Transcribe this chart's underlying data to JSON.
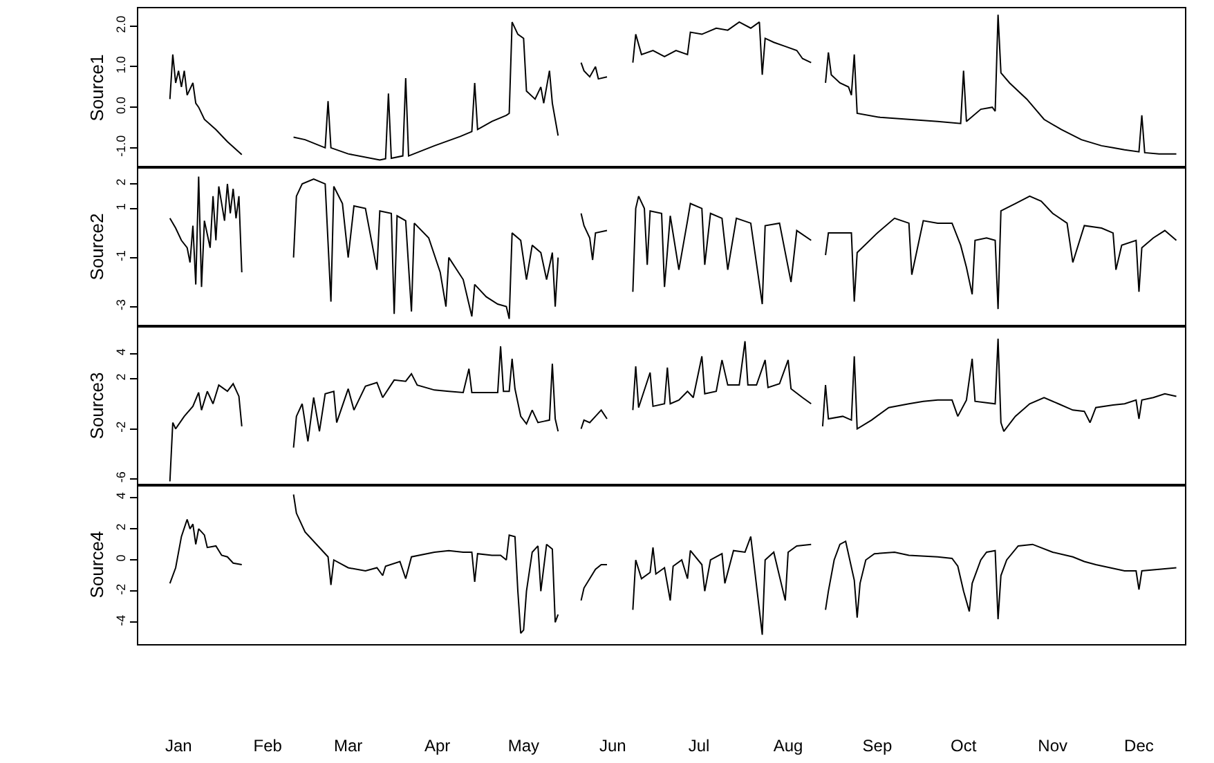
{
  "chart_data": [
    {
      "type": "line",
      "ylabel": "Source1",
      "color": "#000000",
      "tick_labels": "y",
      "xlim": [
        "--01-01",
        "--12-31"
      ],
      "xticks": [
        {
          "value": "--01-15",
          "label": "Jan"
        },
        {
          "value": "--02-15",
          "label": "Feb"
        },
        {
          "value": "--03-15",
          "label": "Mar"
        },
        {
          "value": "--04-15",
          "label": "Apr"
        },
        {
          "value": "--05-15",
          "label": "May"
        },
        {
          "value": "--06-15",
          "label": "Jun"
        },
        {
          "value": "--07-15",
          "label": "Jul"
        },
        {
          "value": "--08-15",
          "label": "Aug"
        },
        {
          "value": "--09-15",
          "label": "Sep"
        },
        {
          "value": "--10-15",
          "label": "Oct"
        },
        {
          "value": "--11-15",
          "label": "Nov"
        },
        {
          "value": "--12-15",
          "label": "Dec"
        }
      ],
      "ylim": [
        -1.48,
        2.44
      ],
      "yticks": [
        {
          "value": -1,
          "label": "-1.0"
        },
        {
          "value": 0,
          "label": "0.0"
        },
        {
          "value": 1,
          "label": "1.0"
        },
        {
          "value": 2,
          "label": "2.0"
        }
      ],
      "x": [
        "--01-12",
        "--01-13",
        "--01-14",
        "--01-15",
        "--01-16",
        "--01-17",
        "--01-18",
        "--01-20",
        "--01-21",
        "--01-22",
        "--01-24",
        "--01-28",
        "--02-01",
        "--02-06",
        "--02-15",
        "--02-24",
        "--02-28",
        "--03-07",
        "--03-08",
        "--03-09",
        "--03-15",
        "--03-26",
        "--03-28",
        "--03-29",
        "--03-30",
        "--04-03",
        "--04-04",
        "--04-05",
        "--04-14",
        "--04-23",
        "--04-27",
        "--04-28",
        "--04-29",
        "--05-04",
        "--05-09",
        "--05-10",
        "--05-11",
        "--05-13",
        "--05-15",
        "--05-16",
        "--05-19",
        "--05-21",
        "--05-22",
        "--05-24",
        "--05-25",
        "--05-27",
        "--05-30",
        "--06-04",
        "--06-05",
        "--06-07",
        "--06-09",
        "--06-10",
        "--06-13",
        "--06-18",
        "--06-22",
        "--06-23",
        "--06-25",
        "--06-29",
        "--07-03",
        "--07-07",
        "--07-11",
        "--07-12",
        "--07-16",
        "--07-21",
        "--07-25",
        "--07-29",
        "--08-02",
        "--08-05",
        "--08-06",
        "--08-07",
        "--08-10",
        "--08-14",
        "--08-18",
        "--08-20",
        "--08-23",
        "--08-26",
        "--08-28",
        "--08-29",
        "--08-30",
        "--09-02",
        "--09-05",
        "--09-06",
        "--09-07",
        "--09-08",
        "--09-16",
        "--09-26",
        "--10-06",
        "--10-14",
        "--10-15",
        "--10-16",
        "--10-21",
        "--10-25",
        "--10-26",
        "--10-27",
        "--10-28",
        "--10-31",
        "--11-06",
        "--11-12",
        "--11-18",
        "--11-25",
        "--12-02",
        "--12-06",
        "--12-10",
        "--12-15",
        "--12-16",
        "--12-17",
        "--12-22",
        "--12-28"
      ],
      "values": [
        0.2,
        1.3,
        0.6,
        0.9,
        0.5,
        0.9,
        0.3,
        0.6,
        0.1,
        0.0,
        -0.3,
        -0.55,
        -0.85,
        -1.17,
        null,
        -0.74,
        -0.8,
        -1.0,
        0.15,
        -1.0,
        -1.15,
        -1.3,
        -1.27,
        0.34,
        -1.26,
        -1.2,
        0.72,
        -1.2,
        -0.95,
        -0.72,
        -0.6,
        0.6,
        -0.55,
        -0.35,
        -0.2,
        -0.15,
        2.1,
        1.8,
        1.7,
        0.4,
        0.2,
        0.5,
        0.1,
        0.9,
        0.1,
        -0.7,
        null,
        1.1,
        0.9,
        0.75,
        1.0,
        0.7,
        0.75,
        null,
        1.1,
        1.8,
        1.3,
        1.4,
        1.25,
        1.4,
        1.3,
        1.85,
        1.8,
        1.95,
        1.9,
        2.1,
        1.95,
        2.1,
        0.8,
        1.7,
        1.6,
        1.5,
        1.4,
        1.2,
        1.1,
        null,
        0.6,
        1.35,
        0.8,
        0.6,
        0.5,
        0.3,
        1.3,
        -0.15,
        -0.25,
        -0.3,
        -0.35,
        -0.4,
        0.9,
        -0.35,
        -0.05,
        0.0,
        -0.1,
        2.28,
        0.85,
        0.6,
        0.2,
        -0.3,
        -0.55,
        -0.8,
        -0.95,
        -1.0,
        -1.05,
        -1.1,
        -0.2,
        -1.12,
        -1.15,
        -1.15
      ]
    },
    {
      "type": "line",
      "ylabel": "Source2",
      "color": "#000000",
      "tick_labels": "y",
      "xlim": [
        "--01-01",
        "--12-31"
      ],
      "xticks": [
        {
          "value": "--01-15",
          "label": "Jan"
        },
        {
          "value": "--02-15",
          "label": "Feb"
        },
        {
          "value": "--03-15",
          "label": "Mar"
        },
        {
          "value": "--04-15",
          "label": "Apr"
        },
        {
          "value": "--05-15",
          "label": "May"
        },
        {
          "value": "--06-15",
          "label": "Jun"
        },
        {
          "value": "--07-15",
          "label": "Jul"
        },
        {
          "value": "--08-15",
          "label": "Aug"
        },
        {
          "value": "--09-15",
          "label": "Sep"
        },
        {
          "value": "--10-15",
          "label": "Oct"
        },
        {
          "value": "--11-15",
          "label": "Nov"
        },
        {
          "value": "--12-15",
          "label": "Dec"
        }
      ],
      "ylim": [
        -3.8,
        2.68
      ],
      "yticks": [
        -3,
        -1,
        1,
        2
      ],
      "x": [
        "--01-12",
        "--01-14",
        "--01-16",
        "--01-18",
        "--01-19",
        "--01-20",
        "--01-21",
        "--01-22",
        "--01-23",
        "--01-24",
        "--01-26",
        "--01-27",
        "--01-28",
        "--01-29",
        "--01-31",
        "--02-01",
        "--02-02",
        "--02-03",
        "--02-04",
        "--02-05",
        "--02-06",
        "--02-15",
        "--02-24",
        "--02-25",
        "--02-27",
        "--03-03",
        "--03-07",
        "--03-09",
        "--03-10",
        "--03-13",
        "--03-15",
        "--03-17",
        "--03-21",
        "--03-25",
        "--03-26",
        "--03-30",
        "--03-31",
        "--04-01",
        "--04-04",
        "--04-06",
        "--04-07",
        "--04-12",
        "--04-16",
        "--04-18",
        "--04-19",
        "--04-24",
        "--04-27",
        "--04-28",
        "--05-02",
        "--05-06",
        "--05-09",
        "--05-10",
        "--05-11",
        "--05-14",
        "--05-16",
        "--05-18",
        "--05-21",
        "--05-23",
        "--05-25",
        "--05-26",
        "--05-27",
        "--05-30",
        "--06-04",
        "--06-05",
        "--06-07",
        "--06-08",
        "--06-09",
        "--06-13",
        "--06-18",
        "--06-22",
        "--06-23",
        "--06-24",
        "--06-26",
        "--06-27",
        "--06-28",
        "--07-02",
        "--07-03",
        "--07-05",
        "--07-08",
        "--07-11",
        "--07-12",
        "--07-16",
        "--07-17",
        "--07-19",
        "--07-23",
        "--07-25",
        "--07-28",
        "--08-02",
        "--08-06",
        "--08-07",
        "--08-12",
        "--08-16",
        "--08-18",
        "--08-23",
        "--08-26",
        "--08-28",
        "--08-29",
        "--09-03",
        "--09-06",
        "--09-07",
        "--09-08",
        "--09-15",
        "--09-21",
        "--09-26",
        "--09-27",
        "--10-01",
        "--10-06",
        "--10-11",
        "--10-14",
        "--10-16",
        "--10-18",
        "--10-19",
        "--10-23",
        "--10-26",
        "--10-27",
        "--10-28",
        "--11-02",
        "--11-07",
        "--11-11",
        "--11-15",
        "--11-20",
        "--11-22",
        "--11-26",
        "--12-02",
        "--12-06",
        "--12-07",
        "--12-09",
        "--12-14",
        "--12-15",
        "--12-16",
        "--12-20",
        "--12-24",
        "--12-28"
      ],
      "values": [
        0.6,
        0.2,
        -0.3,
        -0.6,
        -1.2,
        0.3,
        -2.1,
        2.3,
        -2.2,
        0.5,
        -0.6,
        1.5,
        -0.3,
        1.9,
        0.5,
        2.0,
        0.8,
        1.8,
        0.6,
        1.5,
        -1.6,
        null,
        -1.0,
        1.5,
        2.0,
        2.2,
        2.0,
        -2.8,
        1.9,
        1.2,
        -1.0,
        1.1,
        1.0,
        -1.5,
        0.9,
        0.8,
        -3.3,
        0.7,
        0.5,
        -3.2,
        0.4,
        -0.2,
        -1.6,
        -3.0,
        -1.0,
        -1.9,
        -3.4,
        -2.1,
        -2.6,
        -2.9,
        -3.0,
        -3.5,
        0.0,
        -0.3,
        -1.9,
        -0.5,
        -0.8,
        -1.9,
        -0.8,
        -3.0,
        -1.0,
        null,
        0.8,
        0.3,
        -0.2,
        -1.1,
        0.0,
        0.1,
        null,
        -2.4,
        1.0,
        1.5,
        1.0,
        -1.3,
        0.9,
        0.8,
        -2.2,
        0.7,
        -1.5,
        0.5,
        1.2,
        1.0,
        -1.3,
        0.8,
        0.6,
        -1.5,
        0.6,
        0.4,
        -2.9,
        0.3,
        0.4,
        -2.0,
        0.1,
        -0.3,
        null,
        -0.9,
        0.0,
        0.0,
        0.0,
        -2.8,
        -0.8,
        0.0,
        0.6,
        0.4,
        -1.7,
        0.5,
        0.4,
        0.4,
        -0.5,
        -1.4,
        -2.5,
        -0.3,
        -0.2,
        -0.3,
        -3.1,
        0.9,
        1.2,
        1.5,
        1.3,
        0.8,
        0.4,
        -1.2,
        0.3,
        0.2,
        0.0,
        -1.5,
        -0.5,
        -0.3,
        -2.4,
        -0.6,
        -0.2,
        0.1,
        -0.3
      ]
    },
    {
      "type": "line",
      "ylabel": "Source3",
      "color": "#000000",
      "tick_labels": "y",
      "xlim": [
        "--01-01",
        "--12-31"
      ],
      "xticks": [
        {
          "value": "--01-15",
          "label": "Jan"
        },
        {
          "value": "--02-15",
          "label": "Feb"
        },
        {
          "value": "--03-15",
          "label": "Mar"
        },
        {
          "value": "--04-15",
          "label": "Apr"
        },
        {
          "value": "--05-15",
          "label": "May"
        },
        {
          "value": "--06-15",
          "label": "Jun"
        },
        {
          "value": "--07-15",
          "label": "Jul"
        },
        {
          "value": "--08-15",
          "label": "Aug"
        },
        {
          "value": "--09-15",
          "label": "Sep"
        },
        {
          "value": "--10-15",
          "label": "Oct"
        },
        {
          "value": "--11-15",
          "label": "Nov"
        },
        {
          "value": "--12-15",
          "label": "Dec"
        }
      ],
      "ylim": [
        -6.5,
        6.2
      ],
      "yticks": [
        -6,
        -2,
        2,
        4
      ],
      "x": [
        "--01-12",
        "--01-13",
        "--01-14",
        "--01-17",
        "--01-20",
        "--01-22",
        "--01-23",
        "--01-25",
        "--01-27",
        "--01-29",
        "--02-01",
        "--02-03",
        "--02-05",
        "--02-06",
        "--02-15",
        "--02-24",
        "--02-25",
        "--02-27",
        "--03-01",
        "--03-03",
        "--03-05",
        "--03-07",
        "--03-10",
        "--03-11",
        "--03-15",
        "--03-17",
        "--03-21",
        "--03-25",
        "--03-27",
        "--03-31",
        "--04-04",
        "--04-06",
        "--04-08",
        "--04-14",
        "--04-19",
        "--04-24",
        "--04-26",
        "--04-27",
        "--05-04",
        "--05-06",
        "--05-07",
        "--05-08",
        "--05-10",
        "--05-11",
        "--05-12",
        "--05-14",
        "--05-16",
        "--05-18",
        "--05-20",
        "--05-22",
        "--05-24",
        "--05-25",
        "--05-26",
        "--05-27",
        "--05-30",
        "--06-04",
        "--06-05",
        "--06-07",
        "--06-09",
        "--06-11",
        "--06-13",
        "--06-18",
        "--06-22",
        "--06-23",
        "--06-24",
        "--06-28",
        "--06-29",
        "--07-03",
        "--07-04",
        "--07-05",
        "--07-08",
        "--07-11",
        "--07-13",
        "--07-16",
        "--07-17",
        "--07-21",
        "--07-23",
        "--07-25",
        "--07-29",
        "--07-31",
        "--08-01",
        "--08-04",
        "--08-07",
        "--08-08",
        "--08-12",
        "--08-15",
        "--08-16",
        "--08-20",
        "--08-23",
        "--08-26",
        "--08-27",
        "--08-28",
        "--08-29",
        "--09-03",
        "--09-06",
        "--09-07",
        "--09-08",
        "--09-13",
        "--09-19",
        "--09-26",
        "--10-01",
        "--10-06",
        "--10-11",
        "--10-13",
        "--10-16",
        "--10-18",
        "--10-19",
        "--10-26",
        "--10-27",
        "--10-28",
        "--10-29",
        "--11-02",
        "--11-07",
        "--11-12",
        "--11-17",
        "--11-22",
        "--11-26",
        "--11-28",
        "--11-30",
        "--12-06",
        "--12-10",
        "--12-14",
        "--12-15",
        "--12-16",
        "--12-20",
        "--12-24",
        "--12-28"
      ],
      "values": [
        -6.2,
        -1.5,
        -2.0,
        -1.0,
        -0.2,
        0.9,
        -0.5,
        1.0,
        0.0,
        1.5,
        1.0,
        1.6,
        0.6,
        -1.8,
        null,
        -3.5,
        -1.0,
        0.0,
        -3.0,
        0.5,
        -2.2,
        0.8,
        1.0,
        -1.5,
        1.2,
        -0.5,
        1.4,
        1.7,
        0.5,
        1.9,
        1.8,
        2.4,
        1.5,
        1.1,
        1.0,
        0.9,
        2.8,
        0.9,
        0.9,
        0.9,
        4.6,
        1.0,
        1.0,
        3.6,
        1.2,
        -1.0,
        -1.6,
        -0.5,
        -1.5,
        -1.4,
        -1.3,
        3.2,
        -1.2,
        -2.2,
        null,
        -2.0,
        -1.3,
        -1.5,
        -1.0,
        -0.5,
        -1.2,
        null,
        -0.5,
        3.0,
        -0.3,
        2.5,
        -0.2,
        0.0,
        2.9,
        0.0,
        0.3,
        1.0,
        0.5,
        3.8,
        0.8,
        1.0,
        3.5,
        1.5,
        1.5,
        5.0,
        1.5,
        1.5,
        3.5,
        1.3,
        1.6,
        3.5,
        1.2,
        0.5,
        0.0,
        null,
        -1.8,
        1.5,
        -1.2,
        -1.0,
        -1.3,
        3.8,
        -2.0,
        -1.3,
        -0.3,
        0.0,
        0.2,
        0.3,
        0.3,
        -1.0,
        0.3,
        3.6,
        0.2,
        0.0,
        5.2,
        -1.5,
        -2.2,
        -1.0,
        0.0,
        0.5,
        0.0,
        -0.5,
        -0.6,
        -1.5,
        -0.3,
        -0.1,
        0.0,
        0.3,
        -1.2,
        0.3,
        0.5,
        0.8,
        0.6
      ]
    },
    {
      "type": "line",
      "ylabel": "Source4",
      "color": "#000000",
      "xlim": [
        "--01-01",
        "--12-31"
      ],
      "xticks": [
        {
          "value": "--01-15",
          "label": "Jan"
        },
        {
          "value": "--02-15",
          "label": "Feb"
        },
        {
          "value": "--03-15",
          "label": "Mar"
        },
        {
          "value": "--04-15",
          "label": "Apr"
        },
        {
          "value": "--05-15",
          "label": "May"
        },
        {
          "value": "--06-15",
          "label": "Jun"
        },
        {
          "value": "--07-15",
          "label": "Jul"
        },
        {
          "value": "--08-15",
          "label": "Aug"
        },
        {
          "value": "--09-15",
          "label": "Sep"
        },
        {
          "value": "--10-15",
          "label": "Oct"
        },
        {
          "value": "--11-15",
          "label": "Nov"
        },
        {
          "value": "--12-15",
          "label": "Dec"
        }
      ],
      "ylim": [
        -5.4,
        4.8
      ],
      "yticks": [
        -4,
        -2,
        0,
        2,
        4
      ],
      "x": [
        "--01-12",
        "--01-14",
        "--01-16",
        "--01-18",
        "--01-19",
        "--01-20",
        "--01-21",
        "--01-22",
        "--01-24",
        "--01-25",
        "--01-28",
        "--01-30",
        "--02-01",
        "--02-03",
        "--02-06",
        "--02-15",
        "--02-24",
        "--02-25",
        "--02-28",
        "--03-05",
        "--03-08",
        "--03-09",
        "--03-10",
        "--03-15",
        "--03-21",
        "--03-25",
        "--03-27",
        "--03-28",
        "--04-02",
        "--04-04",
        "--04-06",
        "--04-14",
        "--04-19",
        "--04-24",
        "--04-27",
        "--04-28",
        "--04-29",
        "--05-04",
        "--05-07",
        "--05-09",
        "--05-10",
        "--05-12",
        "--05-13",
        "--05-14",
        "--05-15",
        "--05-16",
        "--05-18",
        "--05-20",
        "--05-21",
        "--05-23",
        "--05-25",
        "--05-26",
        "--05-27",
        "--05-30",
        "--06-04",
        "--06-05",
        "--06-07",
        "--06-09",
        "--06-11",
        "--06-13",
        "--06-18",
        "--06-22",
        "--06-23",
        "--06-25",
        "--06-28",
        "--06-29",
        "--06-30",
        "--07-03",
        "--07-05",
        "--07-06",
        "--07-09",
        "--07-11",
        "--07-12",
        "--07-16",
        "--07-17",
        "--07-19",
        "--07-23",
        "--07-24",
        "--07-27",
        "--07-31",
        "--08-02",
        "--08-06",
        "--08-07",
        "--08-10",
        "--08-14",
        "--08-15",
        "--08-18",
        "--08-23",
        "--08-26",
        "--08-28",
        "--08-29",
        "--08-31",
        "--09-02",
        "--09-04",
        "--09-07",
        "--09-08",
        "--09-09",
        "--09-11",
        "--09-14",
        "--09-21",
        "--09-26",
        "--10-06",
        "--10-11",
        "--10-13",
        "--10-15",
        "--10-17",
        "--10-18",
        "--10-21",
        "--10-23",
        "--10-26",
        "--10-27",
        "--10-28",
        "--10-30",
        "--11-03",
        "--11-08",
        "--11-15",
        "--11-22",
        "--11-26",
        "--11-30",
        "--12-05",
        "--12-10",
        "--12-14",
        "--12-15",
        "--12-16",
        "--12-22",
        "--12-28"
      ],
      "values": [
        -1.5,
        -0.5,
        1.5,
        2.6,
        2.0,
        2.3,
        1.0,
        2.0,
        1.6,
        0.8,
        0.9,
        0.3,
        0.2,
        -0.2,
        -0.3,
        null,
        4.2,
        3.0,
        1.8,
        0.8,
        0.2,
        -1.6,
        0.0,
        -0.5,
        -0.7,
        -0.5,
        -1.0,
        -0.4,
        -0.1,
        -1.2,
        0.2,
        0.5,
        0.6,
        0.5,
        0.5,
        -1.4,
        0.4,
        0.3,
        0.3,
        0.0,
        1.6,
        1.5,
        -2.0,
        -4.7,
        -4.5,
        -2.0,
        0.5,
        0.9,
        -2.0,
        1.0,
        0.7,
        -4.0,
        -3.5,
        null,
        -2.6,
        -1.8,
        -1.2,
        -0.6,
        -0.3,
        -0.3,
        null,
        -3.2,
        0.0,
        -1.2,
        -0.8,
        0.8,
        -0.9,
        -0.5,
        -2.6,
        -0.4,
        0.0,
        -1.2,
        0.6,
        -0.3,
        -2.0,
        0.0,
        0.4,
        -1.5,
        0.6,
        0.5,
        1.5,
        -4.8,
        0.0,
        0.5,
        -2.6,
        0.5,
        0.9,
        1.0,
        null,
        -3.2,
        -2.0,
        0.0,
        1.0,
        1.2,
        -1.3,
        -3.7,
        -1.5,
        0.0,
        0.4,
        0.5,
        0.3,
        0.2,
        0.1,
        -0.4,
        -2.0,
        -3.3,
        -1.5,
        0.0,
        0.5,
        0.6,
        -3.8,
        -1.0,
        0.0,
        0.9,
        1.0,
        0.5,
        0.2,
        -0.1,
        -0.3,
        -0.5,
        -0.7,
        -0.7,
        -1.9,
        -0.7,
        -0.6,
        -0.5
      ]
    }
  ]
}
